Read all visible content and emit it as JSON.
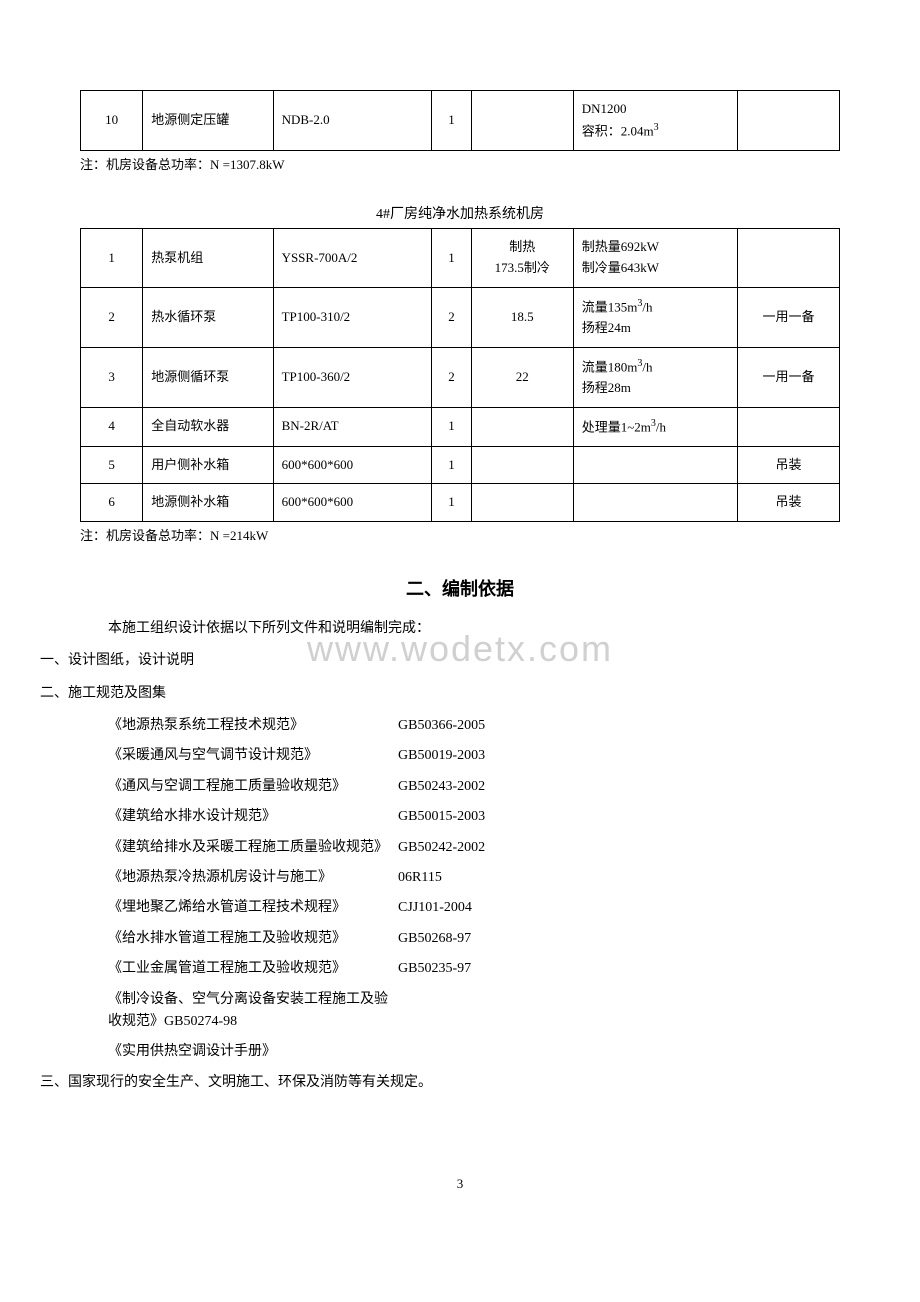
{
  "watermark": "www.wodetx.com",
  "table1": {
    "rows": [
      {
        "num": "10",
        "name": "地源侧定压罐",
        "model": "NDB-2.0",
        "qty": "1",
        "spec1": "",
        "spec2": "DN1200\n容积：2.04m³",
        "note": ""
      }
    ],
    "note": "注：机房设备总功率：N =1307.8kW"
  },
  "table2": {
    "title": "4#厂房纯净水加热系统机房",
    "rows": [
      {
        "num": "1",
        "name": "热泵机组",
        "model": "YSSR-700A/2",
        "qty": "1",
        "spec1": "制热\n173.5制冷",
        "spec2": "制热量692kW\n制冷量643kW",
        "note": ""
      },
      {
        "num": "2",
        "name": "热水循环泵",
        "model": "TP100-310/2",
        "qty": "2",
        "spec1": "18.5",
        "spec2": "流量135m³/h\n扬程24m",
        "note": "一用一备"
      },
      {
        "num": "3",
        "name": "地源侧循环泵",
        "model": "TP100-360/2",
        "qty": "2",
        "spec1": "22",
        "spec2": "流量180m³/h\n扬程28m",
        "note": "一用一备"
      },
      {
        "num": "4",
        "name": "全自动软水器",
        "model": "BN-2R/AT",
        "qty": "1",
        "spec1": "",
        "spec2": "处理量1~2m³/h",
        "note": ""
      },
      {
        "num": "5",
        "name": "用户侧补水箱",
        "model": "600*600*600",
        "qty": "1",
        "spec1": "",
        "spec2": "",
        "note": "吊装"
      },
      {
        "num": "6",
        "name": "地源侧补水箱",
        "model": "600*600*600",
        "qty": "1",
        "spec1": "",
        "spec2": "",
        "note": "吊装"
      }
    ],
    "note": "注：机房设备总功率：N =214kW"
  },
  "section2": {
    "heading": "二、编制依据",
    "intro": "本施工组织设计依据以下所列文件和说明编制完成：",
    "item1": "一、设计图纸，设计说明",
    "item2": "二、施工规范及图集",
    "specs": [
      {
        "name": "《地源热泵系统工程技术规范》",
        "code": "GB50366-2005"
      },
      {
        "name": "《采暖通风与空气调节设计规范》",
        "code": "GB50019-2003"
      },
      {
        "name": "《通风与空调工程施工质量验收规范》",
        "code": "GB50243-2002"
      },
      {
        "name": "《建筑给水排水设计规范》",
        "code": "GB50015-2003"
      },
      {
        "name": "《建筑给排水及采暖工程施工质量验收规范》",
        "code": "GB50242-2002"
      },
      {
        "name": "《地源热泵冷热源机房设计与施工》",
        "code": "06R115"
      },
      {
        "name": "《埋地聚乙烯给水管道工程技术规程》",
        "code": "CJJ101-2004"
      },
      {
        "name": "《给水排水管道工程施工及验收规范》",
        "code": "GB50268-97"
      },
      {
        "name": "《工业金属管道工程施工及验收规范》",
        "code": "GB50235-97"
      },
      {
        "name": "《制冷设备、空气分离设备安装工程施工及验收规范》GB50274-98",
        "code": ""
      },
      {
        "name": "《实用供热空调设计手册》",
        "code": ""
      }
    ],
    "item3": "三、国家现行的安全生产、文明施工、环保及消防等有关规定。"
  },
  "page_number": "3"
}
